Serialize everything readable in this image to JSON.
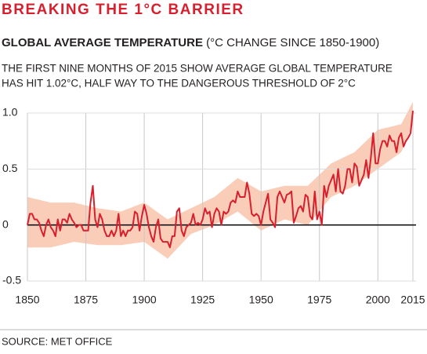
{
  "chart_data": {
    "type": "line",
    "title": "BREAKING THE 1°C BARRIER",
    "subtitle": "GLOBAL AVERAGE TEMPERATURE",
    "subtitle_note": "(°C CHANGE SINCE 1850-1900)",
    "description": [
      "THE FIRST NINE MONTHS OF 2015 SHOW AVERAGE GLOBAL TEMPERATURE",
      "HAS HIT 1.02°C, HALF WAY TO THE DANGEROUS THRESHOLD OF 2°C"
    ],
    "source": "SOURCE: MET OFFICE",
    "x": [
      1850,
      1851,
      1852,
      1853,
      1854,
      1855,
      1856,
      1857,
      1858,
      1859,
      1860,
      1861,
      1862,
      1863,
      1864,
      1865,
      1866,
      1867,
      1868,
      1869,
      1870,
      1871,
      1872,
      1873,
      1874,
      1875,
      1876,
      1877,
      1878,
      1879,
      1880,
      1881,
      1882,
      1883,
      1884,
      1885,
      1886,
      1887,
      1888,
      1889,
      1890,
      1891,
      1892,
      1893,
      1894,
      1895,
      1896,
      1897,
      1898,
      1899,
      1900,
      1901,
      1902,
      1903,
      1904,
      1905,
      1906,
      1907,
      1908,
      1909,
      1910,
      1911,
      1912,
      1913,
      1914,
      1915,
      1916,
      1917,
      1918,
      1919,
      1920,
      1921,
      1922,
      1923,
      1924,
      1925,
      1926,
      1927,
      1928,
      1929,
      1930,
      1931,
      1932,
      1933,
      1934,
      1935,
      1936,
      1937,
      1938,
      1939,
      1940,
      1941,
      1942,
      1943,
      1944,
      1945,
      1946,
      1947,
      1948,
      1949,
      1950,
      1951,
      1952,
      1953,
      1954,
      1955,
      1956,
      1957,
      1958,
      1959,
      1960,
      1961,
      1962,
      1963,
      1964,
      1965,
      1966,
      1967,
      1968,
      1969,
      1970,
      1971,
      1972,
      1973,
      1974,
      1975,
      1976,
      1977,
      1978,
      1979,
      1980,
      1981,
      1982,
      1983,
      1984,
      1985,
      1986,
      1987,
      1988,
      1989,
      1990,
      1991,
      1992,
      1993,
      1994,
      1995,
      1996,
      1997,
      1998,
      1999,
      2000,
      2001,
      2002,
      2003,
      2004,
      2005,
      2006,
      2007,
      2008,
      2009,
      2010,
      2011,
      2012,
      2013,
      2014,
      2015
    ],
    "series": [
      {
        "color": "#d71f2d",
        "values": [
          0.0,
          0.1,
          0.1,
          0.05,
          0.05,
          0.02,
          -0.05,
          -0.1,
          0.0,
          0.05,
          -0.02,
          -0.05,
          -0.1,
          0.05,
          -0.05,
          0.05,
          0.05,
          0.02,
          0.1,
          0.05,
          0.02,
          -0.02,
          0.0,
          0.0,
          -0.05,
          -0.05,
          -0.05,
          0.2,
          0.35,
          0.05,
          -0.02,
          0.1,
          0.05,
          -0.05,
          -0.1,
          -0.1,
          -0.05,
          -0.1,
          -0.05,
          0.1,
          -0.1,
          -0.05,
          -0.1,
          -0.05,
          -0.05,
          -0.02,
          0.12,
          0.1,
          -0.05,
          0.08,
          0.18,
          0.1,
          -0.02,
          -0.1,
          -0.15,
          -0.02,
          0.05,
          -0.12,
          -0.15,
          -0.15,
          -0.15,
          -0.2,
          -0.1,
          -0.1,
          0.12,
          0.15,
          -0.05,
          -0.1,
          -0.02,
          0.0,
          0.02,
          0.1,
          0.0,
          0.02,
          0.0,
          0.05,
          0.15,
          0.1,
          0.12,
          -0.02,
          0.1,
          0.15,
          0.12,
          0.0,
          0.12,
          0.1,
          0.12,
          0.2,
          0.22,
          0.2,
          0.3,
          0.25,
          0.25,
          0.25,
          0.38,
          0.28,
          0.1,
          0.08,
          0.1,
          0.08,
          0.0,
          0.12,
          0.2,
          0.28,
          0.05,
          0.02,
          -0.02,
          0.25,
          0.3,
          0.25,
          0.2,
          0.27,
          0.28,
          0.3,
          0.02,
          0.08,
          0.15,
          0.17,
          0.12,
          0.27,
          0.25,
          0.08,
          0.05,
          0.3,
          0.05,
          0.12,
          0.0,
          0.35,
          0.25,
          0.35,
          0.4,
          0.45,
          0.3,
          0.5,
          0.3,
          0.28,
          0.35,
          0.5,
          0.5,
          0.38,
          0.55,
          0.52,
          0.35,
          0.4,
          0.45,
          0.58,
          0.42,
          0.6,
          0.82,
          0.55,
          0.55,
          0.68,
          0.75,
          0.75,
          0.7,
          0.8,
          0.75,
          0.75,
          0.65,
          0.78,
          0.82,
          0.7,
          0.75,
          0.78,
          0.82,
          1.02
        ]
      }
    ],
    "band": {
      "color": "#f9cdb8",
      "x": [
        1850,
        1860,
        1870,
        1880,
        1890,
        1900,
        1910,
        1920,
        1930,
        1940,
        1950,
        1960,
        1970,
        1980,
        1990,
        2000,
        2010,
        2015
      ],
      "lower": [
        -0.2,
        -0.2,
        -0.15,
        -0.18,
        -0.18,
        -0.15,
        -0.3,
        -0.08,
        0.0,
        0.12,
        -0.05,
        0.05,
        0.0,
        0.25,
        0.35,
        0.5,
        0.65,
        0.9
      ],
      "upper": [
        0.25,
        0.2,
        0.2,
        0.15,
        0.12,
        0.2,
        0.05,
        0.15,
        0.25,
        0.42,
        0.3,
        0.35,
        0.35,
        0.55,
        0.65,
        0.85,
        0.9,
        1.1
      ]
    },
    "xlim": [
      1850,
      2015
    ],
    "xticks": [
      1850,
      1875,
      1900,
      1925,
      1950,
      1975,
      2000,
      2015
    ],
    "ylim": [
      -0.5,
      1
    ],
    "yticks": [
      -0.5,
      0,
      0.5,
      {
        "value": 1,
        "label": "1.0"
      }
    ],
    "grid": true
  }
}
